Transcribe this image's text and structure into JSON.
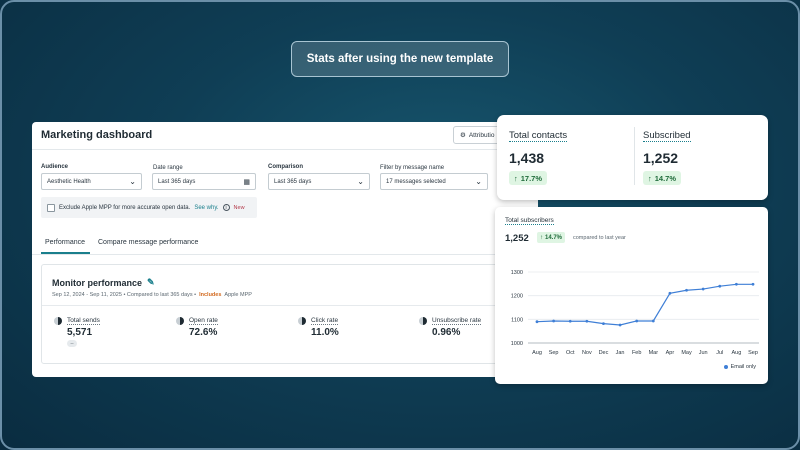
{
  "banner": {
    "text": "Stats after using the new template"
  },
  "dashboard": {
    "title": "Marketing dashboard",
    "attribution_label": "Attributio",
    "filters": {
      "audience": {
        "label": "Audience",
        "value": "Aesthetic Health"
      },
      "date_range": {
        "label": "Date range",
        "value": "Last 365 days"
      },
      "comparison": {
        "label": "Comparison",
        "value": "Last 365 days"
      },
      "message_filter": {
        "label": "Filter by message name",
        "value": "17 messages selected"
      }
    },
    "mpp": {
      "text": "Exclude Apple MPP for more accurate open data.",
      "link": "See why.",
      "badge": "New"
    },
    "tabs": [
      "Performance",
      "Compare message performance"
    ],
    "monitor": {
      "title": "Monitor performance",
      "date_text": "Sep 12, 2024 - Sep 11, 2025 • Compared to last 365 days •",
      "includes": "Includes",
      "mpp_text": "Apple MPP",
      "metrics": [
        {
          "label": "Total sends",
          "value": "5,571",
          "badge": "--"
        },
        {
          "label": "Open rate",
          "value": "72.6%"
        },
        {
          "label": "Click rate",
          "value": "11.0%"
        },
        {
          "label": "Unsubscribe rate",
          "value": "0.96%"
        }
      ]
    }
  },
  "contacts_card": {
    "total_contacts": {
      "label": "Total contacts",
      "value": "1,438",
      "change": "17.7%"
    },
    "subscribed": {
      "label": "Subscribed",
      "value": "1,252",
      "change": "14.7%"
    }
  },
  "subscribers_card": {
    "title": "Total subscribers",
    "value": "1,252",
    "change": "14.7%",
    "compare_text": "compared to last year",
    "legend": "Email only"
  },
  "colors": {
    "accent": "#1a7f8c",
    "line": "#3f7fd6",
    "positive_bg": "#dff5e3",
    "positive_text": "#1f6b3a"
  },
  "chart_data": {
    "type": "line",
    "categories": [
      "Aug",
      "Sep",
      "Oct",
      "Nov",
      "Dec",
      "Jan",
      "Feb",
      "Mar",
      "Apr",
      "May",
      "Jun",
      "Jul",
      "Aug",
      "Sep"
    ],
    "series": [
      {
        "name": "Email only",
        "values": [
          1090,
          1093,
          1092,
          1092,
          1082,
          1076,
          1093,
          1093,
          1210,
          1223,
          1228,
          1240,
          1248,
          1248
        ]
      }
    ],
    "yticks": [
      "1300",
      "1200",
      "1100",
      "1000"
    ],
    "ylim": [
      1000,
      1300
    ],
    "grid": true,
    "legend_position": "bottom-right"
  }
}
